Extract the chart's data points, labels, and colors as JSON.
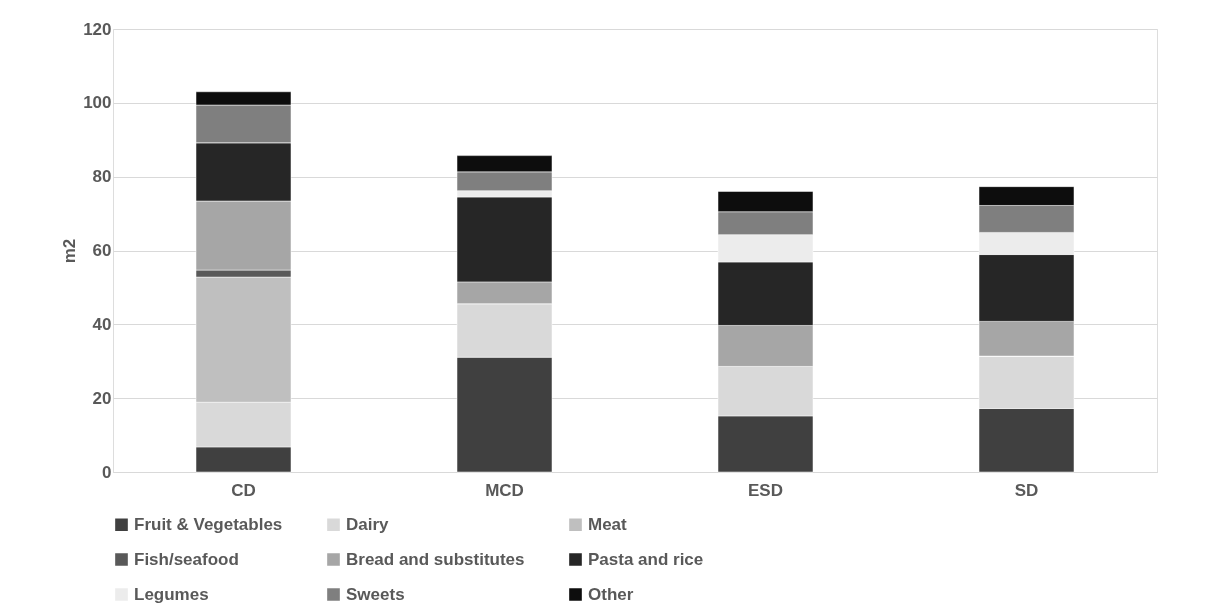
{
  "chart_data": {
    "type": "bar",
    "stacked": true,
    "ylabel": "m2",
    "categories": [
      "CD",
      "MCD",
      "ESD",
      "SD"
    ],
    "ylim": [
      0,
      120
    ],
    "yticks": [
      0,
      20,
      40,
      60,
      80,
      100,
      120
    ],
    "grid": "y",
    "legend": "bottom",
    "series": [
      {
        "name": "Fruit & Vegetables",
        "color": "#404040",
        "values": [
          6.8,
          31.1,
          15.2,
          17.2
        ]
      },
      {
        "name": "Dairy",
        "color": "#d9d9d9",
        "values": [
          12.1,
          14.5,
          13.4,
          14.2
        ]
      },
      {
        "name": "Meat",
        "color": "#bfbfbf",
        "values": [
          33.9,
          0,
          0,
          0
        ]
      },
      {
        "name": "Fish/seafood",
        "color": "#595959",
        "values": [
          1.9,
          0,
          0,
          0
        ]
      },
      {
        "name": "Bread and substitutes",
        "color": "#a6a6a6",
        "values": [
          18.7,
          5.9,
          11.1,
          9.4
        ]
      },
      {
        "name": "Pasta and rice",
        "color": "#262626",
        "values": [
          15.8,
          23,
          17.2,
          18.1
        ]
      },
      {
        "name": "Legumes",
        "color": "#ececec",
        "values": [
          0,
          1.7,
          7.4,
          6
        ]
      },
      {
        "name": "Sweets",
        "color": "#7f7f7f",
        "values": [
          10.2,
          5.1,
          6.2,
          7.3
        ]
      },
      {
        "name": "Other",
        "color": "#0d0d0d",
        "values": [
          3.6,
          4.4,
          5.5,
          5.1
        ]
      }
    ]
  }
}
